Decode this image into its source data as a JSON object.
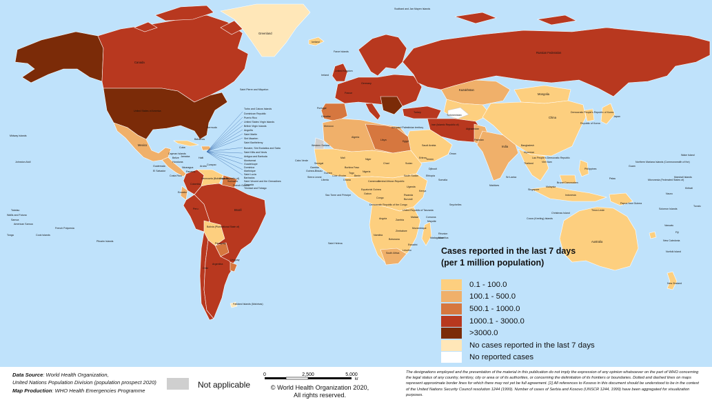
{
  "legend": {
    "title_line1": "Cases reported in the last 7 days",
    "title_line2": "(per 1 million population)",
    "items": [
      {
        "label": "0.1 - 100.0",
        "color": "#fdcf7f"
      },
      {
        "label": "100.1 - 500.0",
        "color": "#f0b06a"
      },
      {
        "label": "500.1 - 1000.0",
        "color": "#d6773f"
      },
      {
        "label": "1000.1 - 3000.0",
        "color": "#b8381f"
      },
      {
        "label": ">3000.0",
        "color": "#7b2b08"
      },
      {
        "label": "No cases reported in the last 7 days",
        "color": "#ffe7b8"
      },
      {
        "label": "No reported cases",
        "color": "#ffffff"
      }
    ]
  },
  "not_applicable": {
    "label": "Not applicable",
    "color": "#cfcfcf"
  },
  "source": {
    "line1_label": "Data Source",
    "line1_text": ": World Health Organization,",
    "line2_text": "United Nations Population Division (population prospect 2020)",
    "line3_label": "Map Production",
    "line3_text": ": WHO Health Emergencies Programme"
  },
  "scale": {
    "ticks": [
      "0",
      "2,500",
      "5,000"
    ],
    "unit": "km"
  },
  "copyright": {
    "line1": "© World Health Organization  2020,",
    "line2": "All rights reserved."
  },
  "disclaimer": "The designations employed and the presentation of the material in this publication do not imply the expression of any opinion whatsoever on the part of WHO concerning the legal status of any country, territory, city or area or of its authorities, or concerning the delimitation of its frontiers or boundaries. Dotted and dashed lines on maps represent approximate border lines for which there may not yet be full agreement.  [1] All references to Kosovo in this document should be understood to be in the context of the United Nations Security Council resolution 1244 (1999). Number of cases of Serbia and Kosovo (UNSCR 1244, 1999) have been aggregated for visualization purposes.",
  "country_labels": {
    "greenland": "Greenland",
    "svalbard": "Svalbard and Jan Mayen Islands",
    "iceland": "Iceland",
    "faroe": "Faroe Islands",
    "canada": "Canada",
    "usa": "United States of America",
    "stpierre": "Saint Pierre and Miquelon",
    "bermuda": "Bermuda",
    "bahamas": "Bahamas",
    "russia": "Russian Federation",
    "kazakhstan": "Kazakhstan",
    "mongolia": "Mongolia",
    "china": "China",
    "japan": "Japan",
    "dprk": "Democratic People's Republic of Korea",
    "rok": "Republic of Korea",
    "afghanistan": "Afghanistan",
    "pakistan": "Pakistan",
    "india": "India",
    "bangladesh": "Bangladesh",
    "myanmar": "Myanmar",
    "thailand": "Thailand",
    "vietnam": "Viet Nam",
    "philippines": "Philippines",
    "indonesia": "Indonesia",
    "malaysia": "Malaysia",
    "png": "Papua New Guinea",
    "australia": "Australia",
    "newzealand": "New Zealand",
    "newcaledonia": "New Caledonia",
    "vanuatu": "Vanuatu",
    "fiji": "Fiji",
    "mexico": "Mexico",
    "cuba": "Cuba",
    "colombia": "Colombia",
    "venezuela": "Venezuela (Bolivarian Republic of)",
    "brazil": "Brazil",
    "peru": "Peru",
    "bolivia": "Bolivia (Plurinational State of)",
    "chile": "Chile",
    "argentina": "Argentina",
    "falklands": "Falkland Islands (Malvinas)",
    "algeria": "Algeria",
    "libya": "Libya",
    "egypt": "Egypt",
    "mali": "Mali",
    "niger": "Niger",
    "chad": "Chad",
    "sudan": "Sudan",
    "ethiopia": "Ethiopia",
    "somalia": "Somalia",
    "drc": "Democratic Republic of the Congo",
    "angola": "Angola",
    "zambia": "Zambia",
    "namibia": "Namibia",
    "botswana": "Botswana",
    "southafrica": "South Africa",
    "madagascar": "Madagascar",
    "mozambique": "Mozambique",
    "tanzania": "United Republic of Tanzania",
    "kenya": "Kenya",
    "saudi": "Saudi Arabia",
    "iran": "Iran (Islamic Republic of)",
    "turkey": "Turkey",
    "yemen": "Yemen",
    "oman": "Oman",
    "sthelena": "Saint Helena",
    "hawaii_johnston": "Johnston Atoll",
    "midway": "Midway Islands",
    "kiribati": "Kiribati",
    "tokelau": "Tokelau",
    "wallis": "Wallis and Futuna",
    "samoa": "Samoa",
    "amsamoa": "American Samoa",
    "tonga": "Tonga",
    "cook": "Cook Islands",
    "frpoly": "French Polynesia",
    "pitcairn": "Pitcairn Islands",
    "wake": "Wake Island",
    "nmariana": "Northern Mariana Islands (Commonwealth of the)",
    "guam": "Guam",
    "palau": "Palau",
    "micronesia": "Micronesia (Federated States of)",
    "marshall": "Marshall Islands",
    "nauru": "Nauru",
    "solomon": "Solomon Islands",
    "tuvalu": "Tuvalu",
    "norfolk": "Norfolk Island",
    "seychelles": "Seychelles",
    "maldives": "Maldives",
    "srilanka": "Sri Lanka",
    "reunion": "Réunion",
    "mauritius": "Mauritius",
    "cocos": "Cocos (Keeling) Islands",
    "christmas": "Christmas Island",
    "timorleste": "Timor-Leste",
    "brunei": "Brunei Darussalam",
    "singapore": "Singapore",
    "laos": "Lao People's Democratic Republic",
    "caboverde": "Cabo Verde",
    "guineabissau": "Guinea-Bissau",
    "sierraleone": "Sierra Leone",
    "liberia": "Liberia",
    "ghana": "Ghana",
    "nigeria": "Nigeria",
    "cameroon": "Cameroon",
    "gabon": "Gabon",
    "car": "Central African Republic",
    "stp": "Sao Tome and Principe",
    "eqguinea": "Equatorial Guinea",
    "congo": "Congo",
    "uganda": "Uganda",
    "rwanda": "Rwanda",
    "burundi": "Burundi",
    "malawi": "Malawi",
    "zimbabwe": "Zimbabwe",
    "comoros": "Comoros",
    "mayotte": "Mayotte",
    "eswatini": "Eswatini",
    "lesotho": "Lesotho",
    "djibouti": "Djibouti",
    "eritrea": "Eritrea",
    "southsudan": "South Sudan",
    "morocco": "Morocco",
    "gibraltar": "Gibraltar",
    "portugal": "Portugal",
    "ireland": "Ireland",
    "uk": "United Kingdom",
    "france": "France",
    "germany": "Germany",
    "turkmenistan": "Turkmenistan",
    "gaza": "occupied Palestinian territory",
    "westsahara": "Western Sahara",
    "senegal": "Senegal",
    "gambia": "Gambia",
    "guinea": "Guinea",
    "cotedivoire": "Côte d'Ivoire",
    "togo": "Togo",
    "benin": "Benin",
    "burkina": "Burkina Faso",
    "guatemala": "Guatemala",
    "elsalvador": "El Salvador",
    "honduras": "Honduras",
    "nicaragua": "Nicaragua",
    "costarica": "Costa Rica",
    "panama": "Panama",
    "belize": "Belize",
    "jamaica": "Jamaica",
    "haiti": "Haiti",
    "caymanislands": "Cayman Islands",
    "ecuador": "Ecuador",
    "guyana": "Guyana",
    "suriname": "Suriname",
    "frenchguiana": "French Guiana",
    "paraguay": "Paraguay",
    "uruguay": "Uruguay",
    "trinidad": "Trinidad and Tobago",
    "curacao": "Curaçao",
    "aruba": "Aruba",
    "grenada": "Grenada",
    "stvincent": "Saint Vincent and the Grenadines",
    "barbados": "Barbados",
    "stlucia": "Saint Lucia",
    "martinique": "Martinique",
    "dominica": "Dominica",
    "guadeloupe": "Guadeloupe",
    "montserrat": "Montserrat",
    "antigua": "Antigua and Barbuda",
    "stkitts": "Saint Kitts and Nevis",
    "sabaeust": "Bonaire, Sint Eustatius and Saba",
    "stbarth": "Saint Barthélemy",
    "sintmaarten": "Sint Maarten",
    "stmartin": "Saint Martin",
    "anguilla": "Anguilla",
    "bvi": "British Virgin Islands",
    "usvi": "United States Virgin Islands",
    "puertorico": "Puerto Rico",
    "dominicanrep": "Dominican Republic",
    "turkscaicos": "Turks and Caicos Islands"
  }
}
